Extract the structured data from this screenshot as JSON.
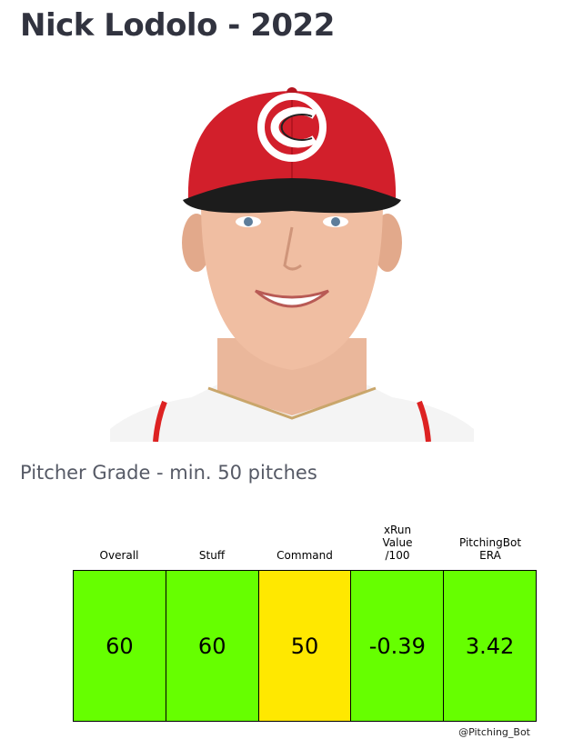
{
  "header": {
    "title": "Nick Lodolo - 2022"
  },
  "photo": {
    "alt": "Nick Lodolo headshot"
  },
  "section": {
    "subtitle": "Pitcher Grade - min. 50 pitches"
  },
  "grade_table": {
    "columns": [
      {
        "label": "Overall",
        "value": "60",
        "color": "#66ff00"
      },
      {
        "label": "Stuff",
        "value": "60",
        "color": "#66ff00"
      },
      {
        "label": "Command",
        "value": "50",
        "color": "#ffe800"
      },
      {
        "label": "xRun\nValue\n/100",
        "value": "-0.39",
        "color": "#66ff00"
      },
      {
        "label": "PitchingBot\nERA",
        "value": "3.42",
        "color": "#66ff00"
      }
    ]
  },
  "footer": {
    "credit": "@Pitching_Bot"
  }
}
